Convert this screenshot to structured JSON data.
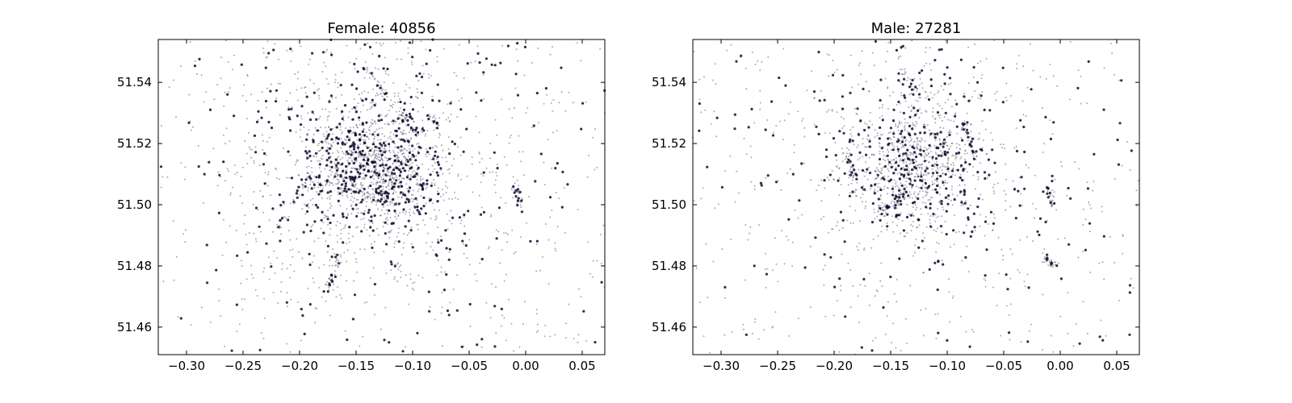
{
  "figure": {
    "background": "#ffffff",
    "point_color": "#0d0a2e"
  },
  "chart_data": [
    {
      "type": "scatter",
      "title": "Female: 40856",
      "xlabel": "",
      "ylabel": "",
      "xlim": [
        -0.325,
        0.07
      ],
      "ylim": [
        51.451,
        51.554
      ],
      "xticks": [
        "-0.30",
        "-0.25",
        "-0.20",
        "-0.15",
        "-0.10",
        "-0.05",
        "0.00",
        "0.05"
      ],
      "yticks": [
        "51.46",
        "51.48",
        "51.50",
        "51.52",
        "51.54"
      ],
      "grid": false,
      "legend": "none",
      "center": [
        -0.135,
        51.512
      ],
      "dense_lines": [
        [
          [
            -0.16,
            51.505
          ],
          [
            -0.18,
            51.525
          ]
        ],
        [
          [
            -0.22,
            51.492
          ],
          [
            -0.19,
            51.51
          ]
        ],
        [
          [
            -0.14,
            51.545
          ],
          [
            -0.125,
            51.535
          ]
        ],
        [
          [
            -0.175,
            51.473
          ],
          [
            -0.165,
            51.484
          ]
        ],
        [
          [
            -0.11,
            51.518
          ],
          [
            -0.09,
            51.505
          ]
        ],
        [
          [
            -0.085,
            51.53
          ],
          [
            -0.075,
            51.524
          ]
        ],
        [
          [
            -0.01,
            51.507
          ],
          [
            -0.005,
            51.5
          ]
        ],
        [
          [
            -0.11,
            51.53
          ],
          [
            -0.095,
            51.522
          ]
        ]
      ]
    },
    {
      "type": "scatter",
      "title": "Male: 27281",
      "xlabel": "",
      "ylabel": "",
      "xlim": [
        -0.325,
        0.07
      ],
      "ylim": [
        51.451,
        51.554
      ],
      "xticks": [
        "-0.30",
        "-0.25",
        "-0.20",
        "-0.15",
        "-0.10",
        "-0.05",
        "0.00",
        "0.05"
      ],
      "yticks": [
        "51.46",
        "51.48",
        "51.50",
        "51.52",
        "51.54"
      ],
      "grid": false,
      "legend": "none",
      "center": [
        -0.13,
        51.513
      ],
      "dense_lines": [
        [
          [
            -0.14,
            51.545
          ],
          [
            -0.125,
            51.535
          ]
        ],
        [
          [
            -0.19,
            51.518
          ],
          [
            -0.18,
            51.505
          ]
        ],
        [
          [
            -0.085,
            51.527
          ],
          [
            -0.075,
            51.515
          ]
        ],
        [
          [
            -0.01,
            51.505
          ],
          [
            -0.005,
            51.499
          ]
        ],
        [
          [
            -0.16,
            51.497
          ],
          [
            -0.14,
            51.503
          ]
        ],
        [
          [
            -0.015,
            51.483
          ],
          [
            -0.005,
            51.48
          ]
        ]
      ]
    }
  ]
}
